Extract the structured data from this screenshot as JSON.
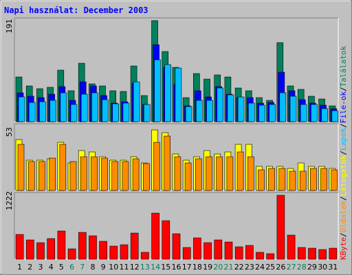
{
  "chart_data": {
    "type": "bar",
    "title": "Napi használat: December 2003",
    "categories": [
      "1",
      "2",
      "3",
      "4",
      "5",
      "6",
      "7",
      "8",
      "9",
      "10",
      "11",
      "12",
      "13",
      "14",
      "15",
      "16",
      "17",
      "18",
      "19",
      "20",
      "21",
      "22",
      "23",
      "24",
      "25",
      "26",
      "27",
      "28",
      "29",
      "30",
      "31"
    ],
    "weekend_days": [
      "6",
      "7",
      "13",
      "14",
      "20",
      "21",
      "27",
      "28"
    ],
    "panels": [
      {
        "id": "hits",
        "ymax": 191,
        "series": [
          {
            "name": "Találatok",
            "color": "#00805c",
            "values": [
              85,
              68,
              62,
              65,
              97,
              58,
              110,
              71,
              67,
              58,
              57,
              105,
              50,
              191,
              133,
              103,
              46,
              91,
              80,
              88,
              85,
              64,
              58,
              46,
              40,
              150,
              67,
              61,
              48,
              43,
              30
            ]
          },
          {
            "name": "File-ok",
            "color": "#0000ff",
            "values": [
              55,
              48,
              45,
              52,
              66,
              40,
              75,
              68,
              50,
              35,
              38,
              73,
              33,
              145,
              103,
              70,
              30,
              58,
              47,
              66,
              52,
              45,
              46,
              35,
              37,
              94,
              58,
              42,
              35,
              31,
              25
            ]
          },
          {
            "name": "Lapok",
            "color": "#00bfff",
            "values": [
              47,
              37,
              38,
              40,
              55,
              33,
              52,
              54,
              42,
              34,
              35,
              75,
              32,
              117,
              108,
              101,
              29,
              40,
              40,
              64,
              51,
              47,
              35,
              31,
              33,
              55,
              48,
              33,
              32,
              25,
              21
            ]
          }
        ]
      },
      {
        "id": "pages-visits",
        "ymax": 53,
        "series": [
          {
            "name": "Oldalak",
            "color": "#ffff00",
            "values": [
              42,
              25,
              25,
              26,
              40,
              23,
              33,
              32,
              28,
              25,
              25,
              28,
              23,
              50,
              48,
              30,
              25,
              28,
              33,
              30,
              32,
              38,
              38,
              20,
              20,
              20,
              18,
              23,
              20,
              20,
              18
            ]
          },
          {
            "name": "Látogatók",
            "color": "#ff8c00",
            "values": [
              38,
              24,
              24,
              27,
              38,
              24,
              28,
              28,
              27,
              24,
              24,
              26,
              22,
              40,
              45,
              28,
              23,
              26,
              28,
              28,
              28,
              32,
              28,
              17,
              18,
              18,
              16,
              16,
              18,
              18,
              17
            ]
          }
        ]
      },
      {
        "id": "kbyte",
        "ymax": 1222,
        "series": [
          {
            "name": "KByte",
            "color": "#ff0000",
            "values": [
              479,
              370,
              311,
              391,
              538,
              191,
              518,
              442,
              336,
              254,
              271,
              502,
              130,
              878,
              742,
              481,
              224,
              408,
              317,
              373,
              330,
              234,
              261,
              130,
              106,
              1222,
              461,
              225,
              204,
              185,
              215
            ]
          }
        ]
      }
    ],
    "side_labels": [
      {
        "text": "KByte",
        "color": "#ff0000"
      },
      {
        "text": "/",
        "color": "#000000"
      },
      {
        "text": "Oldalak",
        "color": "#ff8c00"
      },
      {
        "text": "/",
        "color": "#000000"
      },
      {
        "text": "Látogatók",
        "color": "#ffff00"
      },
      {
        "text": "/",
        "color": "#000000"
      },
      {
        "text": "Lapok",
        "color": "#00bfff"
      },
      {
        "text": "/",
        "color": "#000000"
      },
      {
        "text": "File-ok",
        "color": "#0000ff"
      },
      {
        "text": "/",
        "color": "#000000"
      },
      {
        "text": "Találatok",
        "color": "#00805c"
      }
    ],
    "colors": {
      "background": "#c0c0c0",
      "weekday_label": "#000000",
      "weekend_label": "#00805c"
    }
  }
}
